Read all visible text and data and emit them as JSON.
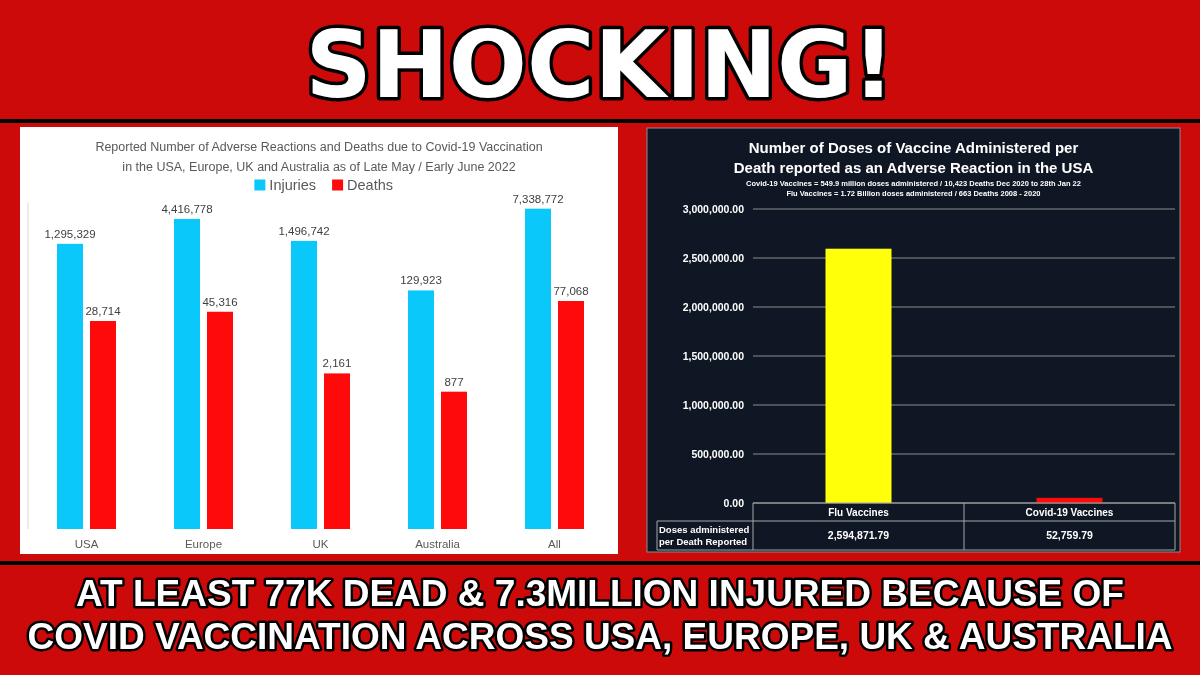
{
  "chart_data": [
    {
      "type": "other",
      "title": "SHOCKING!"
    },
    {
      "type": "bar",
      "title": "Reported Number of Adverse Reactions and Deaths due to Covid-19 Vaccination in the USA, Europe, UK and Australia as of Late May / Early June 2022",
      "categories": [
        "USA",
        "Europe",
        "UK",
        "Australia",
        "All"
      ],
      "series": [
        {
          "name": "Injuries",
          "color": "#0ac8fa",
          "values": [
            1295329,
            4416778,
            1496742,
            129923,
            7338772
          ],
          "value_labels": [
            "1,295,329",
            "4,416,778",
            "1,496,742",
            "129,923",
            "7,338,772"
          ]
        },
        {
          "name": "Deaths",
          "color": "#fe0a0a",
          "values": [
            28714,
            45316,
            2161,
            877,
            77068
          ],
          "value_labels": [
            "28,714",
            "45,316",
            "2,161",
            "877",
            "77,068"
          ]
        }
      ],
      "log": true,
      "ylim": [
        1,
        10000000
      ],
      "tick_labels": "x",
      "legend": "top"
    },
    {
      "type": "bar",
      "title": "Number of Doses of Vaccine Administered per Death reported as an Adverse Reaction in the USA",
      "subtitle": "Covid-19 Vaccines = 549.9 million doses administered / 10,423 Deaths Dec 2020 to 28th Jan 22 Flu Vaccines = 1.72 Billion doses administered / 663 Deaths 2008 - 2020",
      "categories": [
        "Flu Vaccines",
        "Covid-19 Vaccines"
      ],
      "values": [
        2594871.79,
        52759.79
      ],
      "colors": [
        "#ffff0a",
        "#fe0a0a"
      ],
      "value_labels": [
        "2,594,871.79",
        "52,759.79"
      ],
      "ylim": [
        0,
        3000000
      ],
      "yticks": [
        {
          "value": 0,
          "label": "0.00"
        },
        {
          "value": 500000,
          "label": "500,000.00"
        },
        {
          "value": 1000000,
          "label": "1,000,000.00"
        },
        {
          "value": 1500000,
          "label": "1,500,000.00"
        },
        {
          "value": 2000000,
          "label": "2,000,000.00"
        },
        {
          "value": 2500000,
          "label": "2,500,000.00"
        },
        {
          "value": 3000000,
          "label": "3,000,000.00"
        }
      ],
      "grid": "y",
      "annotations": [
        "Doses administered per Death Reported"
      ]
    },
    {
      "type": "other",
      "title": "AT LEAST 77K DEAD & 7.3MILLION INJURED BECAUSE OF COVID VACCINATION ACROSS USA, EUROPE, UK & AUSTRALIA"
    }
  ]
}
